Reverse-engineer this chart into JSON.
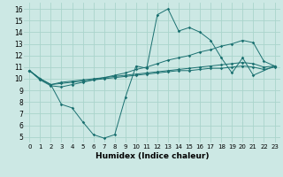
{
  "xlabel": "Humidex (Indice chaleur)",
  "bg_color": "#cce8e4",
  "grid_color": "#aad4cc",
  "line_color": "#1a7070",
  "xlim": [
    -0.5,
    23.5
  ],
  "ylim": [
    4.5,
    16.5
  ],
  "xticks": [
    0,
    1,
    2,
    3,
    4,
    5,
    6,
    7,
    8,
    9,
    10,
    11,
    12,
    13,
    14,
    15,
    16,
    17,
    18,
    19,
    20,
    21,
    22,
    23
  ],
  "yticks": [
    5,
    6,
    7,
    8,
    9,
    10,
    11,
    12,
    13,
    14,
    15,
    16
  ],
  "line1_x": [
    0,
    1,
    2,
    3,
    4,
    5,
    6,
    7,
    8,
    9,
    10,
    11,
    12,
    13,
    14,
    15,
    16,
    17,
    18,
    19,
    20,
    21,
    23
  ],
  "line1_y": [
    10.7,
    10.0,
    9.5,
    7.8,
    7.5,
    6.3,
    5.2,
    4.9,
    5.2,
    8.4,
    11.1,
    10.9,
    15.5,
    16.0,
    14.1,
    14.4,
    14.0,
    13.3,
    11.8,
    10.5,
    11.8,
    10.3,
    11.1
  ],
  "line2_x": [
    0,
    1,
    2,
    3,
    4,
    5,
    6,
    7,
    8,
    9,
    10,
    11,
    12,
    13,
    14,
    15,
    16,
    17,
    18,
    19,
    20,
    21,
    22,
    23
  ],
  "line2_y": [
    10.7,
    9.9,
    9.4,
    9.3,
    9.5,
    9.7,
    9.9,
    10.1,
    10.3,
    10.5,
    10.8,
    11.0,
    11.3,
    11.6,
    11.8,
    12.0,
    12.3,
    12.5,
    12.8,
    13.0,
    13.3,
    13.1,
    11.5,
    11.1
  ],
  "line3_x": [
    0,
    1,
    2,
    3,
    4,
    5,
    6,
    7,
    8,
    9,
    10,
    11,
    12,
    13,
    14,
    15,
    16,
    17,
    18,
    19,
    20,
    21,
    22,
    23
  ],
  "line3_y": [
    10.7,
    10.0,
    9.5,
    9.6,
    9.7,
    9.8,
    9.9,
    10.0,
    10.1,
    10.2,
    10.3,
    10.4,
    10.5,
    10.6,
    10.7,
    10.7,
    10.8,
    10.9,
    10.9,
    11.0,
    11.1,
    11.0,
    10.8,
    11.0
  ],
  "line4_x": [
    0,
    1,
    2,
    3,
    4,
    5,
    6,
    7,
    8,
    9,
    10,
    11,
    12,
    13,
    14,
    15,
    16,
    17,
    18,
    19,
    20,
    21,
    22,
    23
  ],
  "line4_y": [
    10.7,
    10.0,
    9.5,
    9.7,
    9.8,
    9.9,
    10.0,
    10.1,
    10.2,
    10.3,
    10.4,
    10.5,
    10.6,
    10.7,
    10.8,
    10.9,
    11.0,
    11.1,
    11.2,
    11.3,
    11.4,
    11.3,
    11.0,
    11.1
  ]
}
